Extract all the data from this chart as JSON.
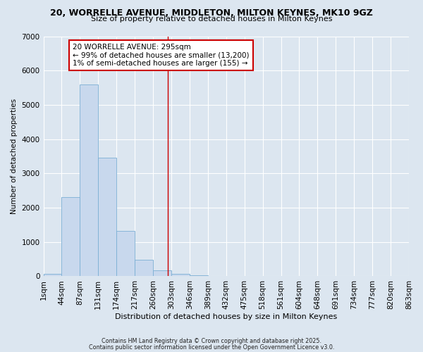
{
  "title": "20, WORRELLE AVENUE, MIDDLETON, MILTON KEYNES, MK10 9GZ",
  "subtitle": "Size of property relative to detached houses in Milton Keynes",
  "xlabel": "Distribution of detached houses by size in Milton Keynes",
  "ylabel": "Number of detached properties",
  "bar_values": [
    75,
    2300,
    5600,
    3450,
    1320,
    480,
    165,
    75,
    30,
    0,
    0,
    0,
    0,
    0,
    0,
    0,
    0,
    0,
    0,
    0
  ],
  "bin_labels": [
    "1sqm",
    "44sqm",
    "87sqm",
    "131sqm",
    "174sqm",
    "217sqm",
    "260sqm",
    "303sqm",
    "346sqm",
    "389sqm",
    "432sqm",
    "475sqm",
    "518sqm",
    "561sqm",
    "604sqm",
    "648sqm",
    "691sqm",
    "734sqm",
    "777sqm",
    "820sqm",
    "863sqm"
  ],
  "bar_color": "#c8d8ed",
  "bar_edge_color": "#7bafd4",
  "marker_line_color": "#cc0000",
  "annotation_text_line1": "20 WORRELLE AVENUE: 295sqm",
  "annotation_text_line2": "← 99% of detached houses are smaller (13,200)",
  "annotation_text_line3": "1% of semi-detached houses are larger (155) →",
  "annotation_box_facecolor": "#ffffff",
  "annotation_box_edgecolor": "#cc0000",
  "ylim": [
    0,
    7000
  ],
  "background_color": "#dce6f0",
  "grid_color": "#ffffff",
  "footnote1": "Contains HM Land Registry data © Crown copyright and database right 2025.",
  "footnote2": "Contains public sector information licensed under the Open Government Licence v3.0."
}
